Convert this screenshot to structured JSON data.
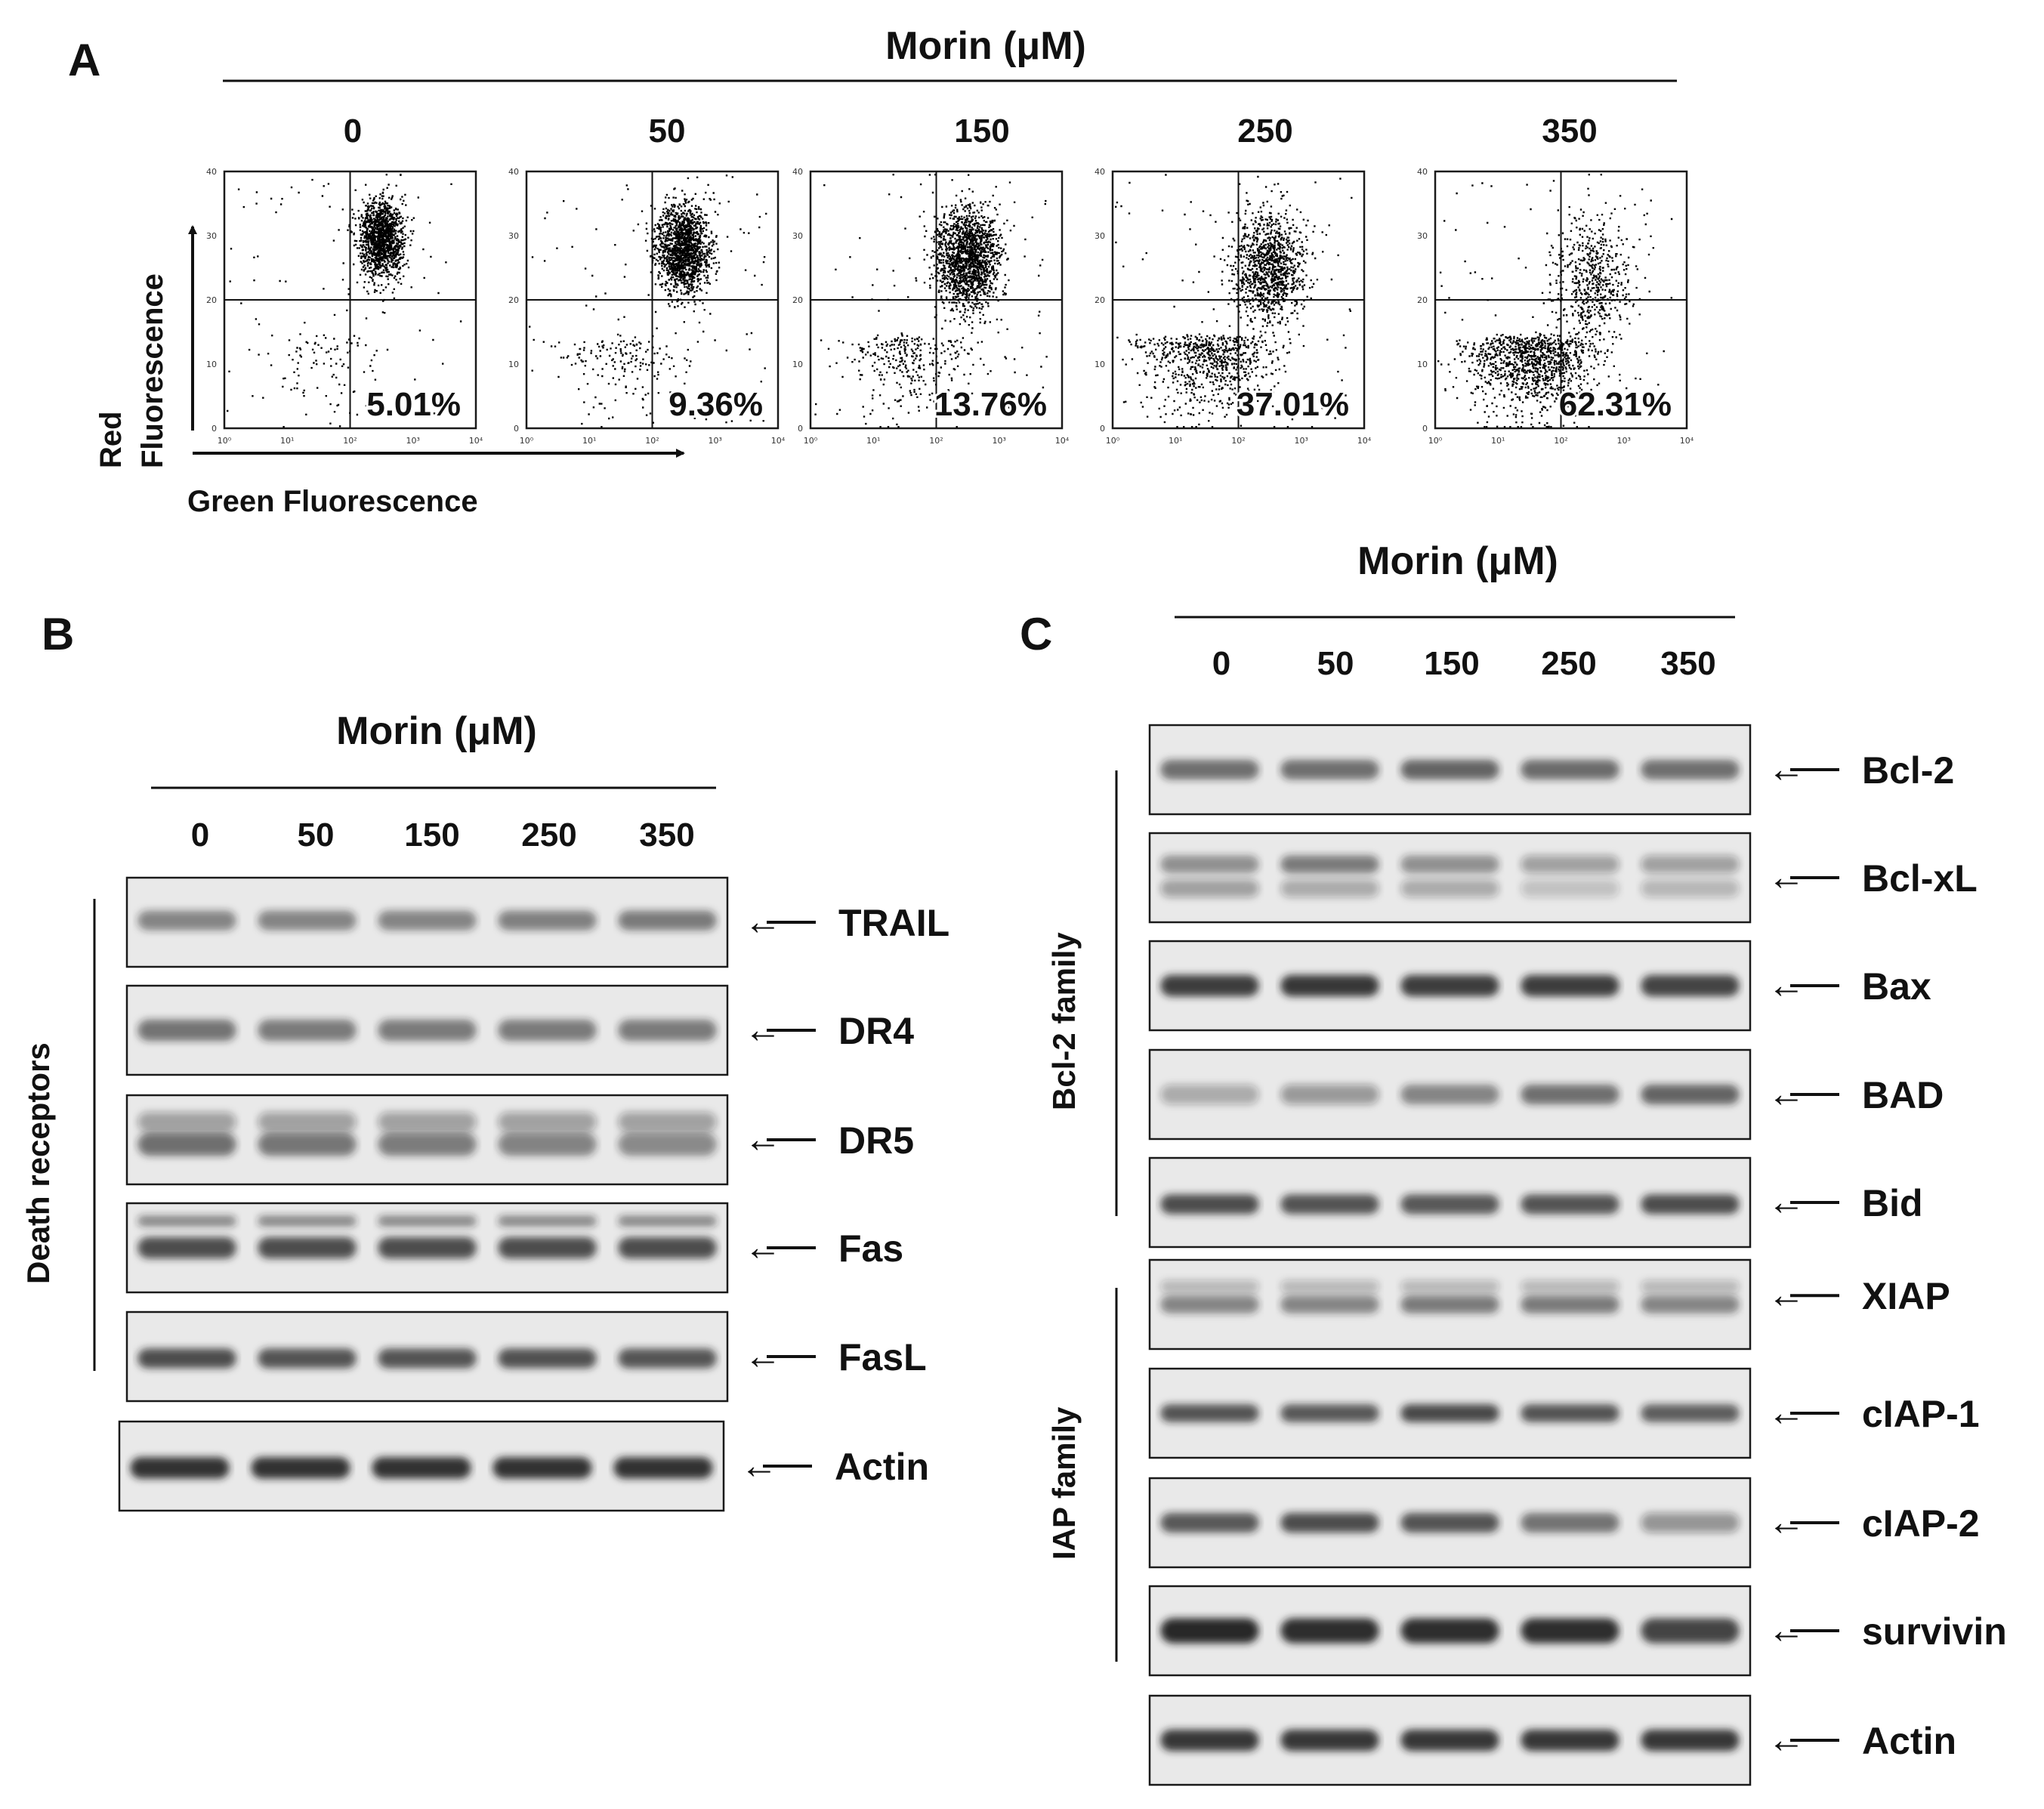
{
  "panels": {
    "A": {
      "letter": "A",
      "title": "Morin (μM)",
      "doses": [
        "0",
        "50",
        "150",
        "250",
        "350"
      ],
      "percentages": [
        "5.01%",
        "9.36%",
        "13.76%",
        "37.01%",
        "62.31%"
      ],
      "percent_values": [
        5.01,
        9.36,
        13.76,
        37.01,
        62.31
      ],
      "y_axis_label_line1": "Red",
      "y_axis_label_line2": "Fluorescence",
      "x_axis_label": "Green Fluorescence",
      "x_ticks": [
        "10⁰",
        "10¹",
        "10²",
        "10³",
        "10⁴"
      ],
      "y_ticks": [
        "0",
        "10",
        "20",
        "30",
        "40"
      ]
    },
    "B": {
      "letter": "B",
      "title": "Morin (μM)",
      "doses": [
        "0",
        "50",
        "150",
        "250",
        "350"
      ],
      "group_label": "Death receptors",
      "proteins": [
        "TRAIL",
        "DR4",
        "DR5",
        "Fas",
        "FasL",
        "Actin"
      ]
    },
    "C": {
      "letter": "C",
      "title": "Morin (μM)",
      "doses": [
        "0",
        "50",
        "150",
        "250",
        "350"
      ],
      "group_labels": [
        "Bcl-2 family",
        "IAP family"
      ],
      "proteins": [
        "Bcl-2",
        "Bcl-xL",
        "Bax",
        "BAD",
        "Bid",
        "XIAP",
        "cIAP-1",
        "cIAP-2",
        "survivin",
        "Actin"
      ]
    }
  },
  "arrow_glyph": "←"
}
